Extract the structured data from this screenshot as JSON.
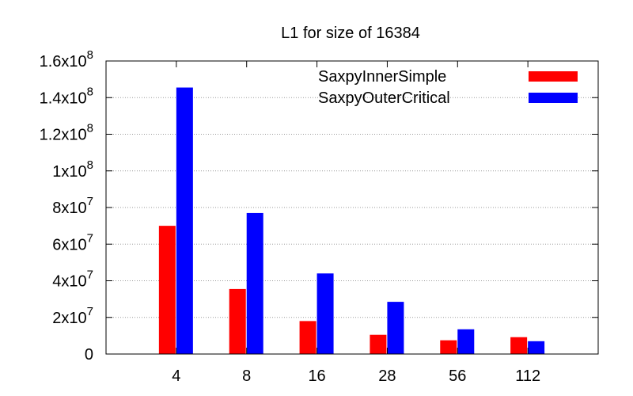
{
  "chart_data": {
    "type": "bar",
    "title": "L1 for size of 16384",
    "xlabel": "",
    "ylabel": "",
    "categories": [
      "4",
      "8",
      "16",
      "28",
      "56",
      "112"
    ],
    "series": [
      {
        "name": "SaxpyInnerSimple",
        "color": "#ff0000",
        "values": [
          70000000,
          35500000,
          18000000,
          10500000,
          7500000,
          9200000
        ]
      },
      {
        "name": "SaxpyOuterCritical",
        "color": "#0000ff",
        "values": [
          145500000,
          77000000,
          44000000,
          28500000,
          13500000,
          7000000
        ]
      }
    ],
    "ylim": [
      0,
      160000000
    ],
    "y_ticks": [
      {
        "value": 0,
        "base": "0",
        "exp": ""
      },
      {
        "value": 20000000,
        "base": "2x10",
        "exp": "7"
      },
      {
        "value": 40000000,
        "base": "4x10",
        "exp": "7"
      },
      {
        "value": 60000000,
        "base": "6x10",
        "exp": "7"
      },
      {
        "value": 80000000,
        "base": "8x10",
        "exp": "7"
      },
      {
        "value": 100000000,
        "base": "1x10",
        "exp": "8"
      },
      {
        "value": 120000000,
        "base": "1.2x10",
        "exp": "8"
      },
      {
        "value": 140000000,
        "base": "1.4x10",
        "exp": "8"
      },
      {
        "value": 160000000,
        "base": "1.6x10",
        "exp": "8"
      }
    ],
    "grid": "horizontal-dotted",
    "legend_position": "top-right"
  }
}
